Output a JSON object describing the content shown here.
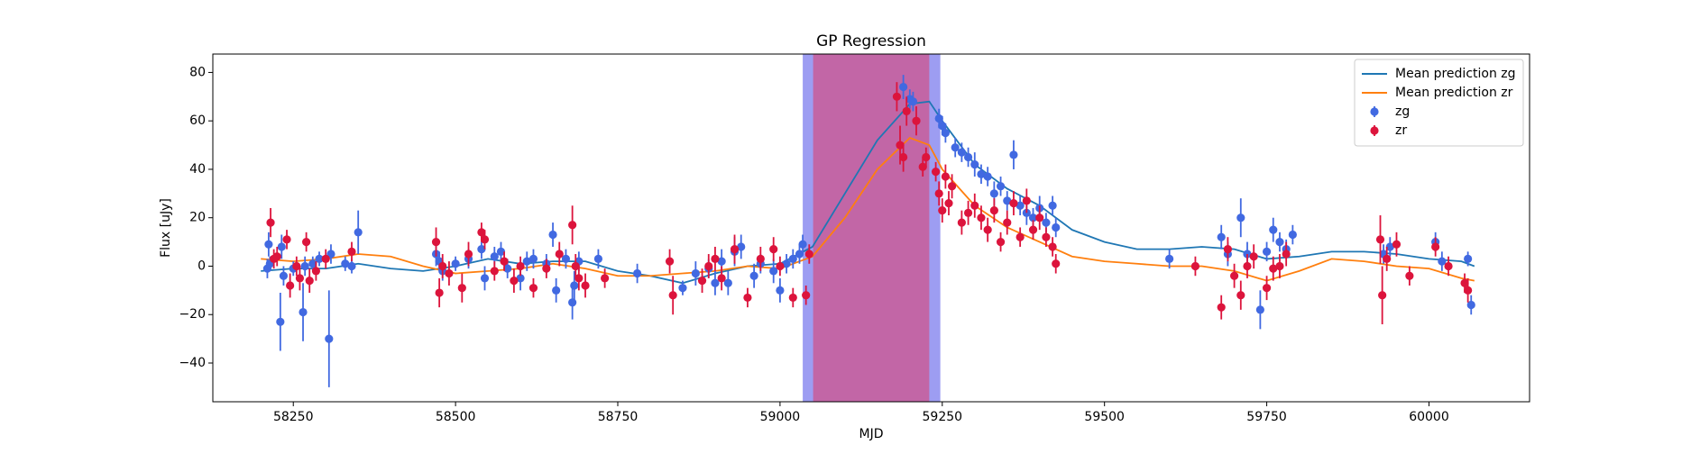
{
  "chart_data": {
    "type": "scatter",
    "title": "GP Regression",
    "xlabel": "MJD",
    "ylabel": "Flux [uJy]",
    "xlim": [
      58126,
      60155
    ],
    "ylim": [
      -56,
      87.6
    ],
    "xticks": [
      58250,
      58500,
      58750,
      59000,
      59250,
      59500,
      59750,
      60000
    ],
    "yticks": [
      {
        "value": -40,
        "label": "−40"
      },
      {
        "value": -20,
        "label": "−20"
      },
      0,
      20,
      40,
      60,
      80
    ],
    "legend": "upper right",
    "spans": [
      {
        "x": [
          59035,
          59247
        ],
        "color": "#9d9df2"
      },
      {
        "x": [
          59051,
          59230
        ],
        "color": "#c266a6"
      }
    ],
    "lines": [
      {
        "name": "Mean prediction zg",
        "color": "#1f77b4",
        "x": [
          58200,
          58250,
          58300,
          58350,
          58400,
          58450,
          58500,
          58550,
          58600,
          58650,
          58700,
          58750,
          58800,
          58850,
          58900,
          58950,
          59000,
          59050,
          59100,
          59150,
          59200,
          59230,
          59250,
          59300,
          59350,
          59400,
          59450,
          59500,
          59550,
          59600,
          59650,
          59700,
          59750,
          59800,
          59850,
          59900,
          59950,
          60000,
          60050,
          60070
        ],
        "values": [
          -2,
          -1,
          -1,
          1,
          -1,
          -2,
          0,
          3,
          1,
          2,
          2,
          -2,
          -4,
          -7,
          -3,
          0,
          1,
          8,
          30,
          52,
          67,
          68,
          60,
          42,
          32,
          25,
          15,
          10,
          7,
          7,
          8,
          7,
          3,
          4,
          6,
          6,
          5,
          3,
          2,
          0
        ]
      },
      {
        "name": "Mean prediction zr",
        "color": "#ff7f0e",
        "x": [
          58200,
          58250,
          58300,
          58350,
          58400,
          58450,
          58500,
          58550,
          58600,
          58650,
          58700,
          58750,
          58800,
          58850,
          58900,
          58950,
          59000,
          59050,
          59100,
          59150,
          59200,
          59230,
          59250,
          59300,
          59350,
          59400,
          59450,
          59500,
          59550,
          59600,
          59650,
          59700,
          59750,
          59800,
          59850,
          59900,
          59950,
          60000,
          60050,
          60070
        ],
        "values": [
          3,
          2,
          3,
          5,
          4,
          0,
          -3,
          -2,
          -1,
          1,
          -1,
          -4,
          -4,
          -3,
          -2,
          0,
          -1,
          4,
          20,
          40,
          53,
          50,
          40,
          25,
          16,
          10,
          4,
          2,
          1,
          0,
          0,
          -2,
          -6,
          -2,
          3,
          2,
          0,
          -1,
          -5,
          -6
        ]
      }
    ],
    "points": [
      {
        "name": "zg",
        "color": "#4169e1",
        "x": [
          58210,
          58212,
          58214,
          58230,
          58232,
          58235,
          58250,
          58265,
          58268,
          58280,
          58290,
          58305,
          58308,
          58330,
          58340,
          58350,
          58470,
          58475,
          58480,
          58500,
          58520,
          58540,
          58545,
          58560,
          58570,
          58580,
          58600,
          58610,
          58620,
          58640,
          58650,
          58655,
          58670,
          58680,
          58683,
          58690,
          58720,
          58780,
          58850,
          58870,
          58890,
          58900,
          58910,
          58920,
          58930,
          58940,
          58960,
          58970,
          58990,
          59000,
          59010,
          59020,
          59030,
          59035,
          59190,
          59200,
          59205,
          59245,
          59250,
          59255,
          59270,
          59280,
          59290,
          59300,
          59310,
          59320,
          59330,
          59340,
          59350,
          59360,
          59370,
          59380,
          59390,
          59400,
          59410,
          59420,
          59425,
          59600,
          59680,
          59690,
          59710,
          59720,
          59740,
          59750,
          59760,
          59770,
          59780,
          59790,
          59930,
          59940,
          60010,
          60020,
          60060,
          60065
        ],
        "values": [
          -1,
          9,
          1,
          -23,
          8,
          -4,
          -1,
          -19,
          0,
          1,
          3,
          -30,
          5,
          1,
          0,
          14,
          5,
          2,
          -2,
          1,
          3,
          7,
          -5,
          4,
          6,
          -1,
          -5,
          2,
          3,
          1,
          13,
          -10,
          3,
          -15,
          -8,
          2,
          3,
          -3,
          -9,
          -3,
          -1,
          -7,
          2,
          -7,
          6,
          8,
          -4,
          1,
          -2,
          -10,
          1,
          3,
          5,
          9,
          74,
          69,
          68,
          61,
          58,
          55,
          49,
          47,
          45,
          42,
          38,
          37,
          30,
          33,
          27,
          46,
          25,
          22,
          20,
          24,
          18,
          25,
          16,
          3,
          12,
          5,
          20,
          5,
          -18,
          6,
          15,
          10,
          7,
          13,
          5,
          8,
          10,
          2,
          3,
          -16
        ],
        "errors": [
          4,
          5,
          3,
          12,
          5,
          4,
          3,
          12,
          4,
          3,
          3,
          20,
          4,
          3,
          3,
          9,
          5,
          4,
          4,
          3,
          4,
          4,
          5,
          4,
          4,
          4,
          5,
          4,
          4,
          4,
          5,
          5,
          4,
          7,
          6,
          4,
          4,
          4,
          3,
          5,
          4,
          5,
          5,
          5,
          6,
          5,
          5,
          4,
          5,
          5,
          4,
          4,
          4,
          4,
          5,
          4,
          4,
          4,
          4,
          4,
          4,
          4,
          4,
          5,
          4,
          4,
          5,
          4,
          4,
          6,
          4,
          5,
          4,
          5,
          4,
          4,
          4,
          4,
          5,
          5,
          8,
          5,
          8,
          4,
          5,
          4,
          4,
          4,
          4,
          4,
          4,
          4,
          3,
          4
        ]
      },
      {
        "name": "zr",
        "color": "#dc143c",
        "x": [
          58215,
          58220,
          58225,
          58240,
          58245,
          58255,
          58260,
          58270,
          58275,
          58285,
          58300,
          58340,
          58470,
          58475,
          58480,
          58490,
          58510,
          58520,
          58540,
          58545,
          58560,
          58575,
          58590,
          58600,
          58620,
          58640,
          58660,
          58680,
          58685,
          58690,
          58700,
          58730,
          58830,
          58835,
          58880,
          58890,
          58900,
          58910,
          58930,
          58950,
          58970,
          58990,
          59000,
          59020,
          59040,
          59045,
          59180,
          59185,
          59190,
          59195,
          59210,
          59220,
          59225,
          59240,
          59245,
          59250,
          59255,
          59260,
          59265,
          59280,
          59290,
          59300,
          59310,
          59320,
          59330,
          59340,
          59350,
          59360,
          59370,
          59380,
          59390,
          59400,
          59410,
          59420,
          59425,
          59640,
          59680,
          59690,
          59700,
          59710,
          59720,
          59730,
          59750,
          59760,
          59770,
          59780,
          59925,
          59928,
          59935,
          59950,
          59970,
          60010,
          60030,
          60055,
          60060
        ],
        "values": [
          18,
          3,
          4,
          11,
          -8,
          0,
          -5,
          10,
          -6,
          -2,
          3,
          6,
          10,
          -11,
          0,
          -3,
          -9,
          5,
          14,
          11,
          -2,
          2,
          -6,
          0,
          -9,
          -1,
          5,
          17,
          0,
          -5,
          -8,
          -5,
          2,
          -12,
          -6,
          0,
          3,
          -5,
          7,
          -13,
          3,
          7,
          0,
          -13,
          -12,
          5,
          70,
          50,
          45,
          64,
          60,
          41,
          45,
          39,
          30,
          23,
          37,
          26,
          33,
          18,
          22,
          25,
          20,
          15,
          23,
          10,
          18,
          26,
          12,
          27,
          15,
          20,
          12,
          8,
          1,
          0,
          -17,
          7,
          -4,
          -12,
          0,
          4,
          -9,
          -1,
          0,
          5,
          11,
          -12,
          3,
          9,
          -4,
          8,
          0,
          -7,
          -10
        ],
        "errors": [
          6,
          4,
          4,
          4,
          5,
          4,
          5,
          4,
          5,
          4,
          4,
          4,
          6,
          6,
          5,
          5,
          6,
          5,
          4,
          4,
          4,
          4,
          5,
          4,
          4,
          4,
          5,
          8,
          5,
          5,
          5,
          4,
          5,
          8,
          5,
          5,
          5,
          5,
          6,
          4,
          5,
          5,
          4,
          4,
          4,
          4,
          6,
          8,
          6,
          6,
          6,
          4,
          4,
          4,
          5,
          5,
          5,
          5,
          5,
          5,
          5,
          5,
          5,
          5,
          5,
          4,
          5,
          5,
          4,
          5,
          4,
          5,
          4,
          4,
          4,
          4,
          5,
          5,
          5,
          6,
          5,
          5,
          5,
          5,
          5,
          5,
          10,
          12,
          5,
          5,
          4,
          4,
          4,
          4,
          5
        ]
      }
    ]
  }
}
